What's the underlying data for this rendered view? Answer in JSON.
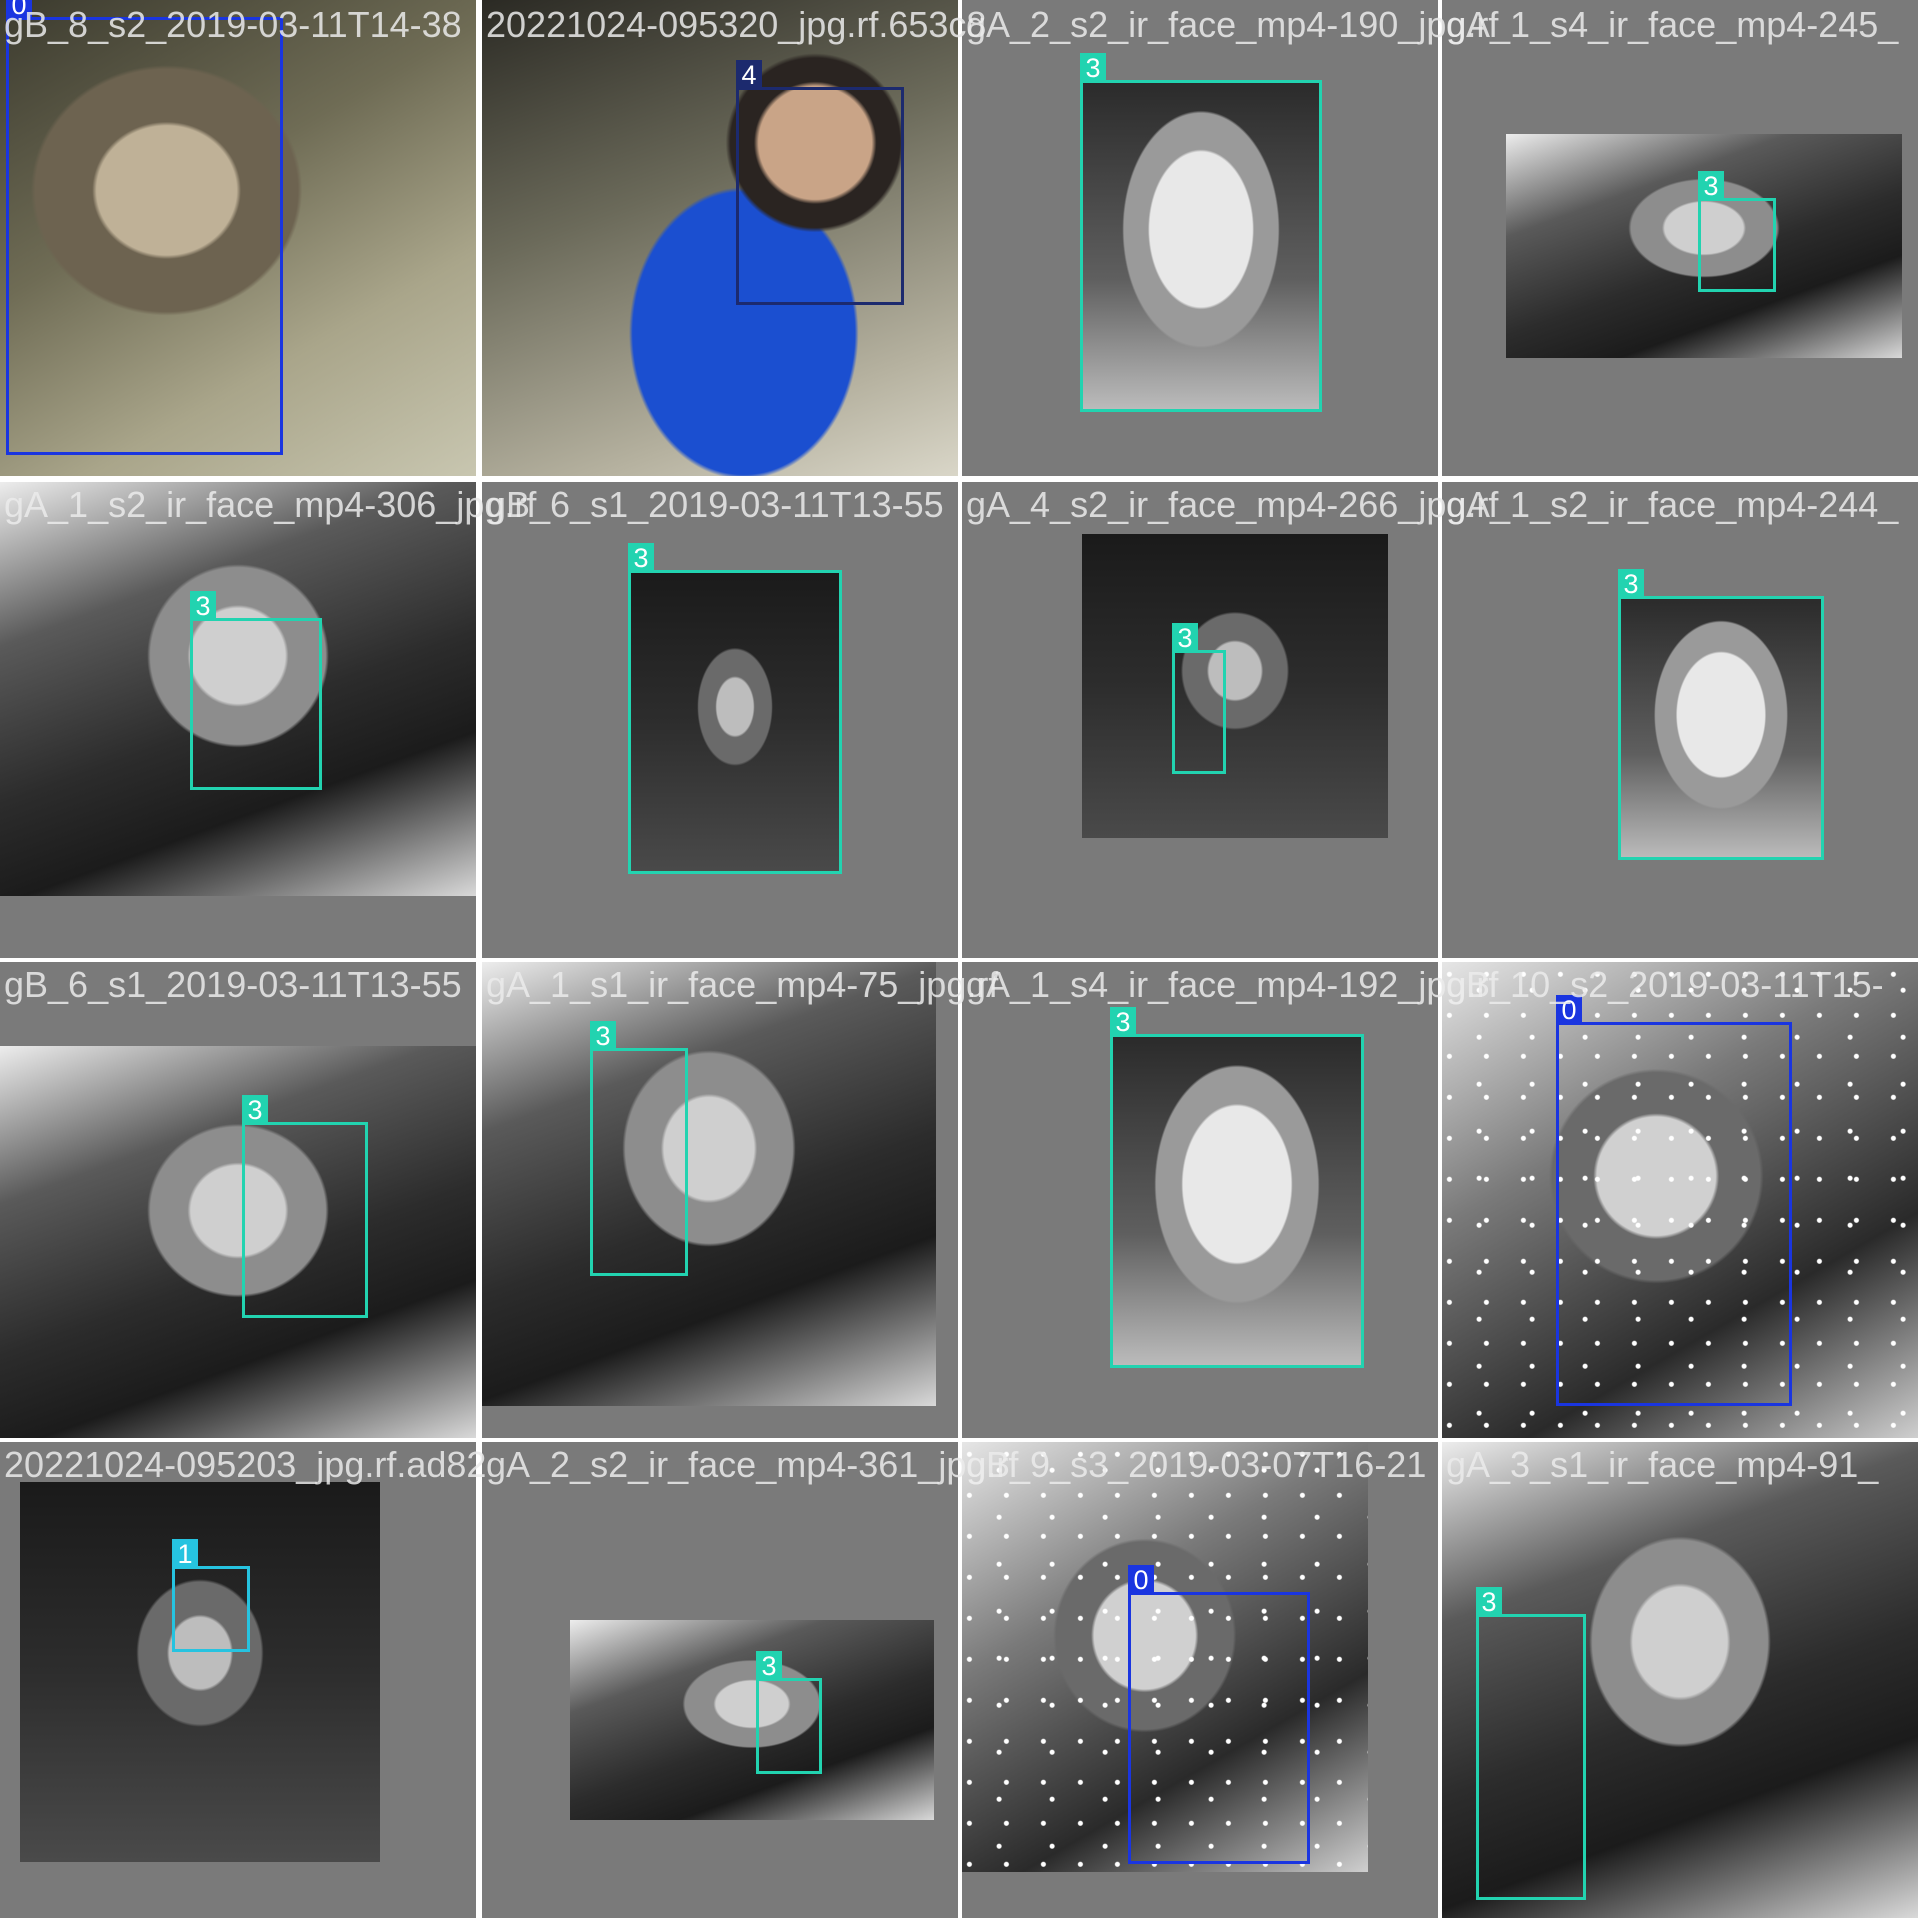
{
  "colors": {
    "class_0": "#1a35e0",
    "class_1": "#26c3e0",
    "class_3": "#22d3b0",
    "class_4": "#1c2a6e",
    "tile_background": "#7a7a7a",
    "filename_text": "#ebebeb"
  },
  "tiles": [
    {
      "filename": "gB_8_s2_2019-03-11T14-38",
      "class_label": "0"
    },
    {
      "filename": "20221024-095320_jpg.rf.653c8",
      "class_label": "4"
    },
    {
      "filename": "gA_2_s2_ir_face_mp4-190_jpg.rf",
      "class_label": "3"
    },
    {
      "filename": "gA_1_s4_ir_face_mp4-245_",
      "class_label": "3"
    },
    {
      "filename": "gA_1_s2_ir_face_mp4-306_jpg.rf",
      "class_label": "3"
    },
    {
      "filename": "gB_6_s1_2019-03-11T13-55",
      "class_label": "3"
    },
    {
      "filename": "gA_4_s2_ir_face_mp4-266_jpg.rf",
      "class_label": "3"
    },
    {
      "filename": "gA_1_s2_ir_face_mp4-244_",
      "class_label": "3"
    },
    {
      "filename": "gB_6_s1_2019-03-11T13-55",
      "class_label": "3"
    },
    {
      "filename": "gA_1_s1_ir_face_mp4-75_jpg.rf",
      "class_label": "3"
    },
    {
      "filename": "gA_1_s4_ir_face_mp4-192_jpg.rf",
      "class_label": "3"
    },
    {
      "filename": "gB_10_s2_2019-03-11T15-",
      "class_label": "0"
    },
    {
      "filename": "20221024-095203_jpg.rf.ad82",
      "class_label": "1"
    },
    {
      "filename": "gA_2_s2_ir_face_mp4-361_jpg.rf",
      "class_label": "3"
    },
    {
      "filename": "gB_9_s3_2019-03-07T16-21",
      "class_label": "0"
    },
    {
      "filename": "gA_3_s1_ir_face_mp4-91_",
      "class_label": "3"
    }
  ]
}
